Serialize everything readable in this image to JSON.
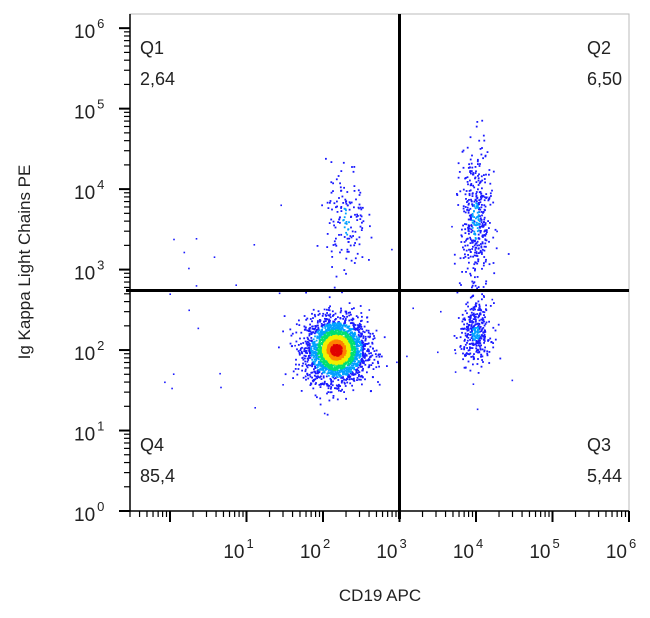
{
  "chart_data": {
    "type": "scatter",
    "plot_kind": "flow cytometry density dot plot",
    "xlabel": "CD19 APC",
    "ylabel": "Ig Kappa Light Chains PE",
    "x_scale": "log",
    "y_scale": "log",
    "xlim": [
      0.3,
      1000000
    ],
    "ylim": [
      1,
      1500000
    ],
    "x_ticks": [
      {
        "base": "10",
        "exp": "1",
        "value": 10
      },
      {
        "base": "10",
        "exp": "2",
        "value": 100
      },
      {
        "base": "10",
        "exp": "3",
        "value": 1000
      },
      {
        "base": "10",
        "exp": "4",
        "value": 10000
      },
      {
        "base": "10",
        "exp": "5",
        "value": 100000
      },
      {
        "base": "10",
        "exp": "6",
        "value": 1000000
      }
    ],
    "y_ticks": [
      {
        "base": "10",
        "exp": "0",
        "value": 1
      },
      {
        "base": "10",
        "exp": "1",
        "value": 10
      },
      {
        "base": "10",
        "exp": "2",
        "value": 100
      },
      {
        "base": "10",
        "exp": "3",
        "value": 1000
      },
      {
        "base": "10",
        "exp": "4",
        "value": 10000
      },
      {
        "base": "10",
        "exp": "5",
        "value": 100000
      },
      {
        "base": "10",
        "exp": "6",
        "value": 1000000
      }
    ],
    "gates": {
      "x": 1000,
      "y": 550
    },
    "quadrants": [
      {
        "name": "Q1",
        "value": "2,64",
        "position": "top-left"
      },
      {
        "name": "Q2",
        "value": "6,50",
        "position": "top-right"
      },
      {
        "name": "Q3",
        "value": "5,44",
        "position": "bottom-right"
      },
      {
        "name": "Q4",
        "value": "85,4",
        "position": "bottom-left"
      }
    ],
    "populations": [
      {
        "center_x": 150,
        "center_y": 100,
        "spread_x_log": 0.2,
        "spread_y_log": 0.2,
        "count": 2600,
        "dense": true
      },
      {
        "center_x": 200,
        "center_y": 4000,
        "spread_x_log": 0.13,
        "spread_y_log": 0.35,
        "count": 150,
        "dense": false
      },
      {
        "center_x": 10000,
        "center_y": 160,
        "spread_x_log": 0.1,
        "spread_y_log": 0.18,
        "count": 340,
        "dense": false
      },
      {
        "center_x": 10000,
        "center_y": 4000,
        "spread_x_log": 0.1,
        "spread_y_log": 0.45,
        "count": 430,
        "dense": false
      }
    ],
    "colormap": [
      "#1a1aff",
      "#00a0ff",
      "#00e070",
      "#f0f000",
      "#ff8000",
      "#e00000"
    ],
    "grid": false
  }
}
